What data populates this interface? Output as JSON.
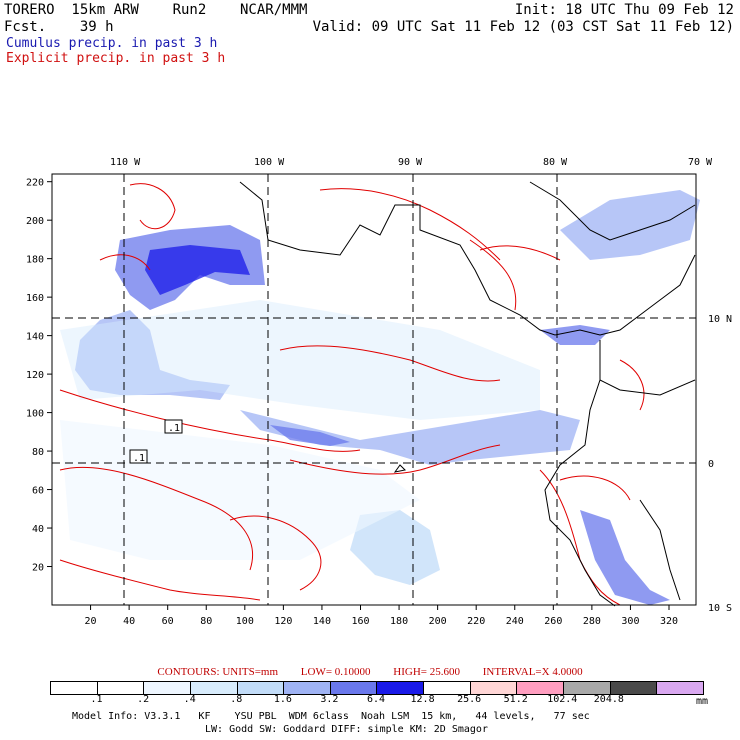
{
  "header": {
    "model_line": "TORERO  15km ARW    Run2    NCAR/MMM",
    "fcst_line": "Fcst.    39 h",
    "init_line": "Init: 18 UTC Thu 09 Feb 12",
    "valid_line": "Valid: 09 UTC Sat 11 Feb 12 (03 CST Sat 11 Feb 12)",
    "cumulus_label": "Cumulus precip. in past 3 h",
    "explicit_label": "Explicit precip. in past 3 h"
  },
  "map": {
    "top_lon_labels": [
      "110 W",
      "100 W",
      "90 W",
      "80 W",
      "70 W"
    ],
    "right_lat_labels": [
      "10 N",
      "0",
      "10 S"
    ],
    "x_ticks": [
      "20",
      "40",
      "60",
      "80",
      "100",
      "120",
      "140",
      "160",
      "180",
      "200",
      "220",
      "240",
      "260",
      "280",
      "300",
      "320"
    ],
    "y_ticks": [
      "220",
      "200",
      "180",
      "160",
      "140",
      "120",
      "100",
      "80",
      "60",
      "40",
      "20"
    ],
    "box_labels": [
      ".1",
      ".1"
    ],
    "colors": {
      "contour": "#e00000",
      "coast": "#000000",
      "grid": "#000000"
    }
  },
  "contours_info": {
    "units": "CONTOURS:  UNITS=mm",
    "low": "LOW= 0.10000",
    "high": "HIGH=  25.600",
    "interval": "INTERVAL=X  4.0000"
  },
  "colorbar": {
    "labels": [
      ".1",
      ".2",
      ".4",
      ".8",
      "1.6",
      "3.2",
      "6.4",
      "12.8",
      "25.6",
      "51.2",
      "102.4",
      "204.8"
    ],
    "colors": [
      "#ffffff",
      "#ffffff",
      "#eef6ff",
      "#d8ecfc",
      "#c2dcf8",
      "#9fb3f4",
      "#6a78ec",
      "#1a1ae8",
      "#ffffff",
      "#ffd6d6",
      "#ff9ec0",
      "#a9a9a9",
      "#4a4a4a",
      "#d9a8f0"
    ],
    "unit": "mm"
  },
  "footer": {
    "line1": "Model Info: V3.3.1   KF    YSU PBL  WDM 6class  Noah LSM  15 km,   44 levels,   77 sec",
    "line2": "LW: Godd SW: Goddard DIFF: simple KM: 2D Smagor"
  }
}
